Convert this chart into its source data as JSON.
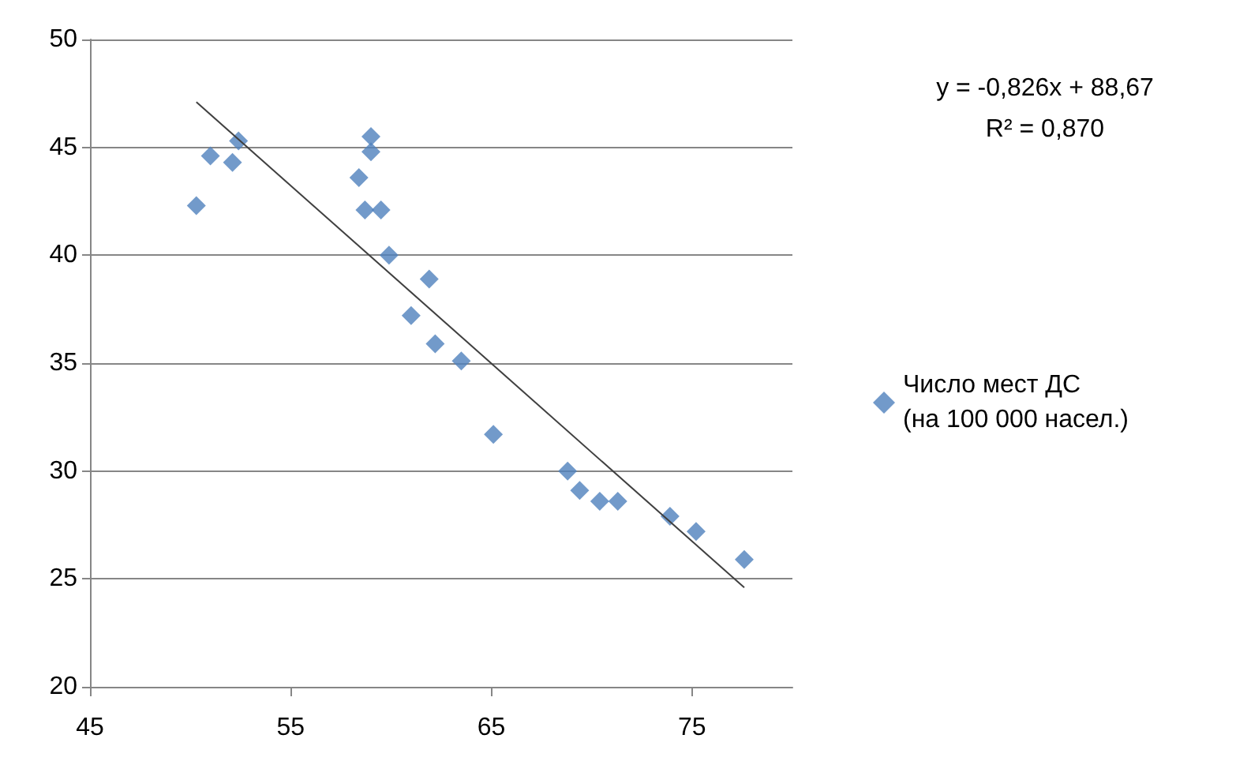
{
  "chart_data": {
    "type": "scatter",
    "annotations": [
      "y = -0,826x + 88,67",
      "R² = 0,870"
    ],
    "series": [
      {
        "name": "Число мест ДС (на 100 000 насел.)",
        "color": "#4f81bd",
        "x": [
          50.3,
          51.0,
          52.1,
          52.4,
          58.4,
          59.0,
          59.0,
          58.7,
          59.5,
          59.9,
          61.9,
          61.0,
          62.2,
          63.5,
          65.1,
          68.8,
          69.4,
          70.4,
          71.3,
          73.9,
          75.2,
          77.6
        ],
        "values": [
          42.3,
          44.6,
          44.3,
          45.3,
          43.6,
          44.8,
          45.5,
          42.1,
          42.1,
          40.0,
          38.9,
          37.2,
          35.9,
          35.1,
          31.7,
          30.0,
          29.1,
          28.6,
          28.6,
          27.9,
          27.2,
          25.9
        ]
      },
      {
        "color": "#404040",
        "type": "line",
        "marker": "none",
        "x": [
          50.3,
          77.6
        ],
        "values": [
          47.1,
          24.6
        ]
      }
    ],
    "xlim": [
      45,
      80
    ],
    "xticks": [
      45,
      55,
      65,
      75
    ],
    "ylim": [
      20,
      50
    ],
    "yticks": [
      20,
      25,
      30,
      35,
      40,
      45,
      50
    ],
    "grid": "y",
    "legend": "right",
    "marker": "diamond"
  }
}
